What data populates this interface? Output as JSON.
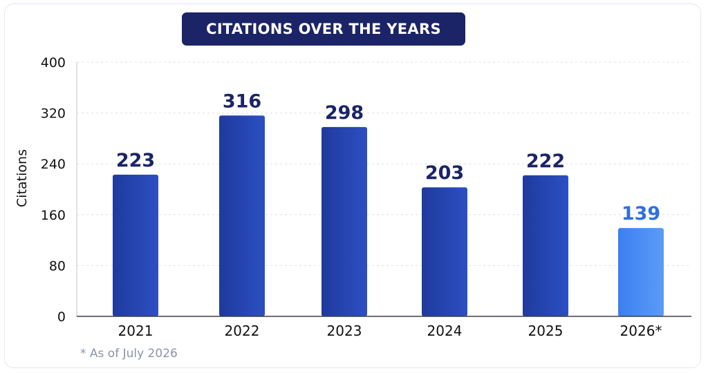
{
  "chart_data": {
    "type": "bar",
    "title": "CITATIONS OVER THE YEARS",
    "ylabel": "Citations",
    "xlabel": "",
    "categories": [
      "2021",
      "2022",
      "2023",
      "2024",
      "2025",
      "2026*"
    ],
    "values": [
      223,
      316,
      298,
      203,
      222,
      139
    ],
    "value_labels": [
      "223",
      "316",
      "298",
      "203",
      "222",
      "139"
    ],
    "highlighted_category": "2026*",
    "ylim": [
      0,
      400
    ],
    "yticks": [
      0,
      80,
      160,
      240,
      320,
      400
    ],
    "grid": true,
    "grid_style": "dashed",
    "footnote": "* As of July 2026"
  },
  "colors": {
    "bar": "#1f3a9e",
    "bar_light": "#2c4fc2",
    "bar_highlight": "#3b7ff0",
    "bar_highlight_light": "#5b9cf7",
    "value_label": "#1b2466",
    "value_label_highlight": "#2f6fe0",
    "title_background": "#1b2466",
    "title_text": "#ffffff",
    "axis_text": "#111111",
    "grid": "#dcdfe6",
    "footnote": "#8a93a8"
  }
}
